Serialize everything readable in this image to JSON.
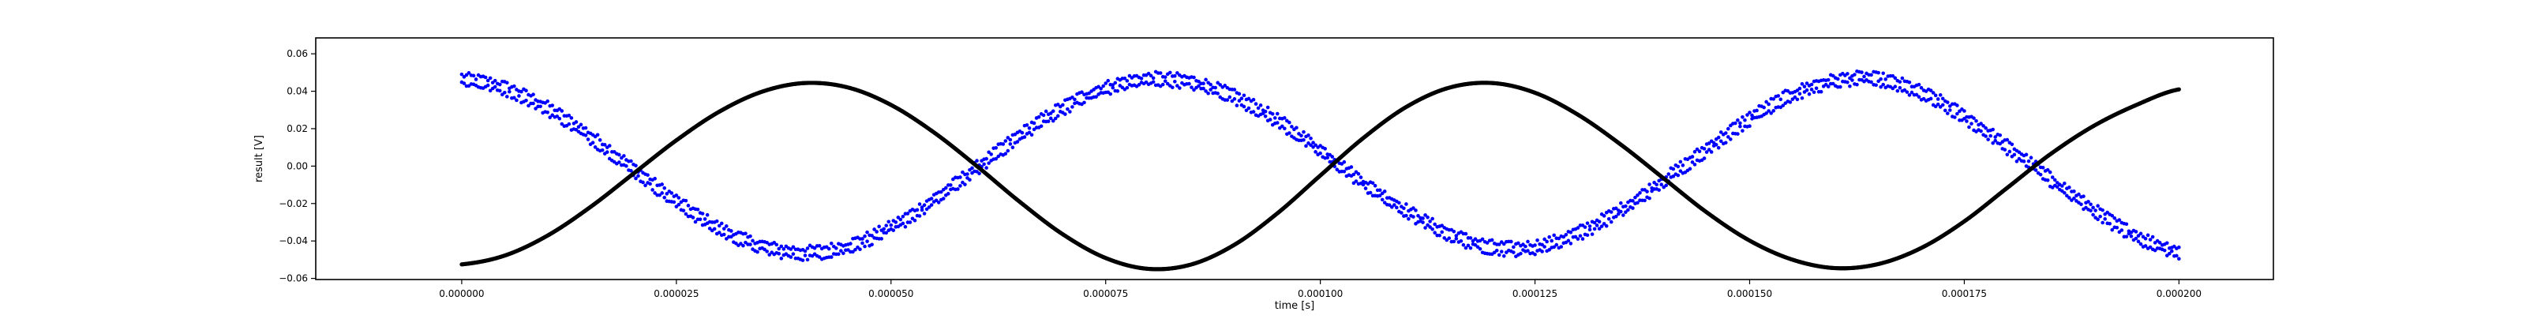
{
  "chart_data": {
    "type": "scatter",
    "title": "",
    "xlabel": "time [s]",
    "ylabel": "result [V]",
    "xlim": [
      -1.7e-05,
      0.000211
    ],
    "ylim": [
      -0.0606,
      0.0685
    ],
    "x_ticks": [
      0,
      2.5e-05,
      5e-05,
      7.5e-05,
      0.0001,
      0.000125,
      0.00015,
      0.000175,
      0.0002
    ],
    "x_tick_labels": [
      "0.000000",
      "0.000025",
      "0.000050",
      "0.000075",
      "0.000100",
      "0.000125",
      "0.000150",
      "0.000175",
      "0.000200"
    ],
    "y_ticks": [
      -0.06,
      -0.04,
      -0.02,
      0.0,
      0.02,
      0.04,
      0.06
    ],
    "y_tick_labels": [
      "−0.06",
      "−0.04",
      "−0.02",
      "0.00",
      "0.02",
      "0.04",
      "0.06"
    ],
    "grid": false,
    "legend": "none",
    "series": [
      {
        "color": "#0000ff",
        "marker": "dot",
        "points": [
          [
            0.0,
            0.0485,
            0.0442
          ],
          [
            5e-06,
            0.0438,
            0.0392
          ],
          [
            1e-05,
            0.033,
            0.0284
          ],
          [
            1.5e-05,
            0.0179,
            0.0133
          ],
          [
            2e-05,
            0.0005,
            -0.0041
          ],
          [
            2.5e-05,
            -0.0167,
            -0.0213
          ],
          [
            3e-05,
            -0.0312,
            -0.0358
          ],
          [
            3.5e-05,
            -0.0408,
            -0.0454
          ],
          [
            4e-05,
            -0.0441,
            -0.0487
          ],
          [
            4.5e-05,
            -0.0405,
            -0.0451
          ],
          [
            5e-05,
            -0.0307,
            -0.0353
          ],
          [
            5.5e-05,
            -0.016,
            -0.0206
          ],
          [
            6e-05,
            0.0012,
            -0.0034
          ],
          [
            6.5e-05,
            0.0184,
            0.0138
          ],
          [
            7e-05,
            0.0333,
            0.0287
          ],
          [
            7.5e-05,
            0.0438,
            0.0392
          ],
          [
            8e-05,
            0.0485,
            0.0439
          ],
          [
            8.5e-05,
            0.0469,
            0.0423
          ],
          [
            9e-05,
            0.0392,
            0.0346
          ],
          [
            9.5e-05,
            0.0265,
            0.0219
          ],
          [
            0.0001,
            0.0106,
            0.006
          ],
          [
            0.000105,
            -0.0066,
            -0.0112
          ],
          [
            0.00011,
            -0.0217,
            -0.0263
          ],
          [
            0.000115,
            -0.034,
            -0.0386
          ],
          [
            0.00012,
            -0.0411,
            -0.0457
          ],
          [
            0.000125,
            -0.041,
            -0.0456
          ],
          [
            0.00013,
            -0.0337,
            -0.0383
          ],
          [
            0.000135,
            -0.0213,
            -0.0259
          ],
          [
            0.00014,
            -0.0055,
            -0.0101
          ],
          [
            0.000145,
            0.0113,
            0.0067
          ],
          [
            0.00015,
            0.0276,
            0.023
          ],
          [
            0.000155,
            0.0404,
            0.0358
          ],
          [
            0.00016,
            0.0477,
            0.0431
          ],
          [
            0.000165,
            0.0484,
            0.0438
          ],
          [
            0.00017,
            0.0414,
            0.0368
          ],
          [
            0.000175,
            0.0286,
            0.024
          ],
          [
            0.00018,
            0.0125,
            0.0079
          ],
          [
            0.000185,
            -0.0046,
            -0.0092
          ],
          [
            0.00019,
            -0.0212,
            -0.0258
          ],
          [
            0.000195,
            -0.035,
            -0.0396
          ],
          [
            0.0002,
            -0.0434,
            -0.048
          ]
        ]
      },
      {
        "color": "#000000",
        "marker": "dot",
        "points": [
          [
            0.0,
            -0.0525
          ],
          [
            5e-06,
            -0.0478
          ],
          [
            1e-05,
            -0.0371
          ],
          [
            1.5e-05,
            -0.0218
          ],
          [
            2e-05,
            -0.004
          ],
          [
            2.5e-05,
            0.0138
          ],
          [
            3e-05,
            0.0291
          ],
          [
            3.5e-05,
            0.0398
          ],
          [
            4e-05,
            0.0444
          ],
          [
            4.5e-05,
            0.042
          ],
          [
            5e-05,
            0.0327
          ],
          [
            5.5e-05,
            0.018
          ],
          [
            6e-05,
            0.0
          ],
          [
            6.5e-05,
            -0.0191
          ],
          [
            7e-05,
            -0.0364
          ],
          [
            7.5e-05,
            -0.0491
          ],
          [
            8e-05,
            -0.0549
          ],
          [
            8.5e-05,
            -0.0525
          ],
          [
            9e-05,
            -0.042
          ],
          [
            9.5e-05,
            -0.0252
          ],
          [
            0.0001,
            -0.005
          ],
          [
            0.000105,
            0.015
          ],
          [
            0.00011,
            0.0316
          ],
          [
            0.000115,
            0.0419
          ],
          [
            0.00012,
            0.0444
          ],
          [
            0.000125,
            0.0392
          ],
          [
            0.00013,
            0.0275
          ],
          [
            0.000135,
            0.0115
          ],
          [
            0.00014,
            -0.0066
          ],
          [
            0.000145,
            -0.0247
          ],
          [
            0.00015,
            -0.0398
          ],
          [
            0.000155,
            -0.05
          ],
          [
            0.00016,
            -0.0545
          ],
          [
            0.000165,
            -0.0523
          ],
          [
            0.00017,
            -0.0437
          ],
          [
            0.000175,
            -0.0295
          ],
          [
            0.00018,
            -0.0116
          ],
          [
            0.000185,
            0.0063
          ],
          [
            0.00019,
            0.0213
          ],
          [
            0.000195,
            0.0326
          ],
          [
            0.0002,
            0.041
          ]
        ]
      }
    ]
  }
}
